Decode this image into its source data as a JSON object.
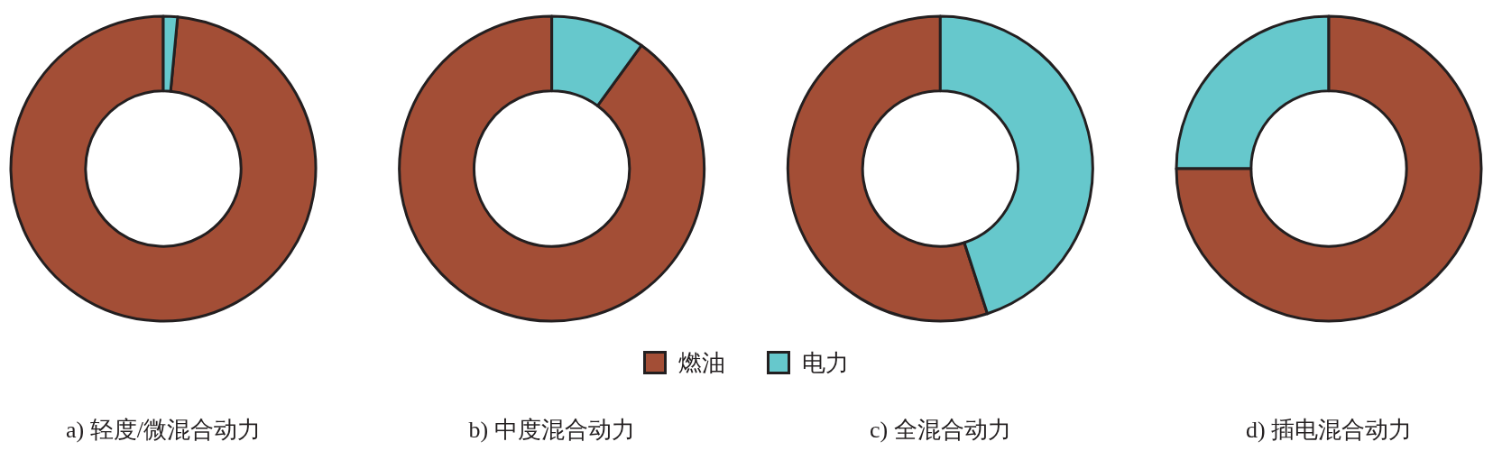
{
  "chart_data": [
    {
      "type": "donut",
      "title": "a) 轻度/微混合动力",
      "categories": [
        null,
        null
      ],
      "values": [
        98.5,
        1.5
      ],
      "colors": [
        "#a34e36",
        "#66c8cc"
      ]
    },
    {
      "type": "donut",
      "title": "b) 中度混合动力",
      "categories": [
        "燃油",
        "电力"
      ],
      "values": [
        90,
        10
      ],
      "colors": [
        "#a34e36",
        "#66c8cc"
      ],
      "legend": "bottom"
    },
    {
      "type": "donut",
      "title": "c) 全混合动力",
      "categories": [
        null,
        null
      ],
      "values": [
        55,
        45
      ],
      "colors": [
        "#a34e36",
        "#66c8cc"
      ]
    },
    {
      "type": "donut",
      "title": "d) 插电混合动力",
      "categories": [
        null,
        null
      ],
      "values": [
        25,
        75
      ],
      "colors": [
        "#66c8cc",
        "#a34e36"
      ]
    }
  ]
}
